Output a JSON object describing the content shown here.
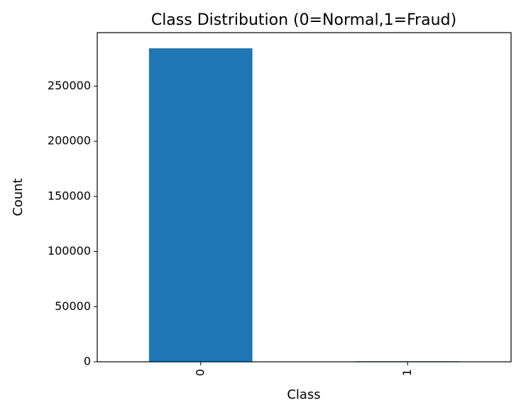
{
  "chart_data": {
    "type": "bar",
    "title": "Class Distribution (0=Normal,1=Fraud)",
    "xlabel": "Class",
    "ylabel": "Count",
    "categories": [
      "0",
      "1"
    ],
    "values": [
      284315,
      492
    ],
    "ylim": [
      0,
      298531
    ],
    "yticks": [
      0,
      50000,
      100000,
      150000,
      200000,
      250000
    ],
    "ytick_labels": [
      "0",
      "50000",
      "100000",
      "150000",
      "200000",
      "250000"
    ],
    "xtick_rotation": "vertical",
    "grid": false,
    "legend": false,
    "colors": {
      "bar": "#1f77b4",
      "axes": "#000000",
      "background": "#ffffff"
    }
  }
}
